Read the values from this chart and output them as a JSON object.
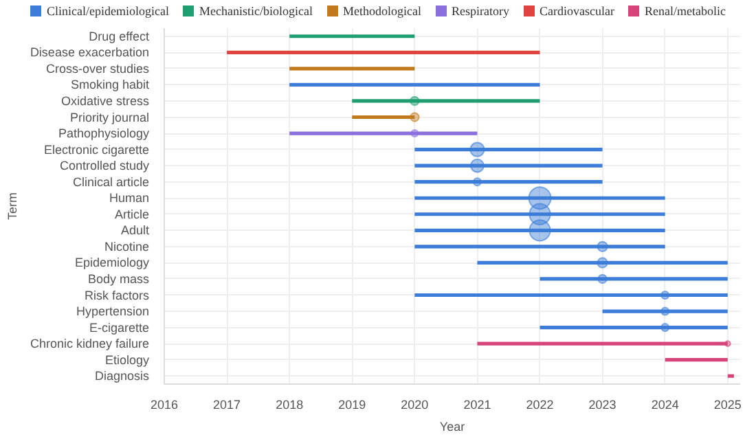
{
  "chart_data": {
    "type": "bar",
    "orientation": "horizontal",
    "xlabel": "Year",
    "ylabel": "Term",
    "legend": "top",
    "grid": true,
    "categories": [
      "Drug effect",
      "Disease exacerbation",
      "Cross-over studies",
      "Smoking habit",
      "Oxidative stress",
      "Priority journal",
      "Pathophysiology",
      "Electronic cigarette",
      "Controlled study",
      "Clinical article",
      "Human",
      "Article",
      "Adult",
      "Nicotine",
      "Epidemiology",
      "Body mass",
      "Risk factors",
      "Hypertension",
      "E-cigarette",
      "Chronic kidney failure",
      "Etiology",
      "Diagnosis"
    ],
    "xlim": [
      2016,
      2025.2
    ],
    "xticks": [
      2016,
      2017,
      2018,
      2019,
      2020,
      2021,
      2022,
      2023,
      2024,
      2025
    ],
    "series": [
      {
        "name": "Clinical/epidemiological",
        "color": "#3b7dd8",
        "base": [
          null,
          null,
          null,
          2018,
          null,
          null,
          null,
          2020,
          2020,
          2020,
          2020,
          2020,
          2020,
          2020,
          2021,
          2022,
          2020,
          2023,
          2022,
          null,
          null,
          null
        ],
        "values": [
          null,
          null,
          null,
          4,
          null,
          null,
          null,
          3,
          3,
          3,
          4,
          4,
          4,
          4,
          4,
          3,
          5,
          2,
          3,
          null,
          null,
          null
        ]
      },
      {
        "name": "Mechanistic/biological",
        "color": "#1f9e6f",
        "base": [
          2018,
          null,
          null,
          null,
          2019,
          null,
          null,
          null,
          null,
          null,
          null,
          null,
          null,
          null,
          null,
          null,
          null,
          null,
          null,
          null,
          null,
          null
        ],
        "values": [
          2,
          null,
          null,
          null,
          3,
          null,
          null,
          null,
          null,
          null,
          null,
          null,
          null,
          null,
          null,
          null,
          null,
          null,
          null,
          null,
          null,
          null
        ]
      },
      {
        "name": "Methodological",
        "color": "#c07a1c",
        "base": [
          null,
          null,
          2018,
          null,
          null,
          2019,
          null,
          null,
          null,
          null,
          null,
          null,
          null,
          null,
          null,
          null,
          null,
          null,
          null,
          null,
          null,
          null
        ],
        "values": [
          null,
          null,
          2,
          null,
          null,
          1,
          null,
          null,
          null,
          null,
          null,
          null,
          null,
          null,
          null,
          null,
          null,
          null,
          null,
          null,
          null,
          null
        ]
      },
      {
        "name": "Respiratory",
        "color": "#8a6fdf",
        "base": [
          null,
          null,
          null,
          null,
          null,
          null,
          2018,
          null,
          null,
          null,
          null,
          null,
          null,
          null,
          null,
          null,
          null,
          null,
          null,
          null,
          null,
          null
        ],
        "values": [
          null,
          null,
          null,
          null,
          null,
          null,
          3,
          null,
          null,
          null,
          null,
          null,
          null,
          null,
          null,
          null,
          null,
          null,
          null,
          null,
          null,
          null
        ]
      },
      {
        "name": "Cardiovascular",
        "color": "#e0443e",
        "base": [
          null,
          2017,
          null,
          null,
          null,
          null,
          null,
          null,
          null,
          null,
          null,
          null,
          null,
          null,
          null,
          null,
          null,
          null,
          null,
          null,
          null,
          null
        ],
        "values": [
          null,
          5,
          null,
          null,
          null,
          null,
          null,
          null,
          null,
          null,
          null,
          null,
          null,
          null,
          null,
          null,
          null,
          null,
          null,
          null,
          null,
          null
        ]
      },
      {
        "name": "Renal/metabolic",
        "color": "#d6457a",
        "base": [
          null,
          null,
          null,
          null,
          null,
          null,
          null,
          null,
          null,
          null,
          null,
          null,
          null,
          null,
          null,
          null,
          null,
          null,
          null,
          2021,
          2024,
          2025
        ],
        "values": [
          null,
          null,
          null,
          null,
          null,
          null,
          null,
          null,
          null,
          null,
          null,
          null,
          null,
          null,
          null,
          null,
          null,
          null,
          null,
          4,
          1,
          0.1
        ]
      },
      {
        "type": "bubble",
        "values": [
          null,
          null,
          null,
          null,
          2020,
          2020,
          2020,
          2021,
          2021,
          2021,
          2022,
          2022,
          2022,
          2023,
          2023,
          2023,
          2024,
          2024,
          2024,
          2025,
          null,
          null
        ],
        "sizes": [
          null,
          null,
          null,
          null,
          0.15,
          0.15,
          0.1,
          0.4,
          0.35,
          0.12,
          1,
          0.9,
          0.9,
          0.2,
          0.2,
          0.15,
          0.12,
          0.12,
          0.12,
          0.06,
          null,
          null
        ],
        "colors": [
          null,
          null,
          null,
          null,
          "#1f9e6f",
          "#c07a1c",
          "#8a6fdf",
          "#3b7dd8",
          "#3b7dd8",
          "#3b7dd8",
          "#3b7dd8",
          "#3b7dd8",
          "#3b7dd8",
          "#3b7dd8",
          "#3b7dd8",
          "#3b7dd8",
          "#3b7dd8",
          "#3b7dd8",
          "#3b7dd8",
          "#d6457a",
          null,
          null
        ]
      }
    ]
  }
}
